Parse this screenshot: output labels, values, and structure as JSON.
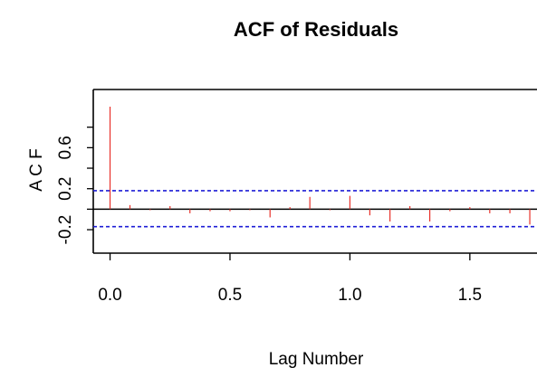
{
  "chart_data": {
    "type": "bar",
    "title": "ACF of Residuals",
    "xlabel": "Lag Number",
    "ylabel": "A C F",
    "x_ticks": [
      "0.0",
      "0.5",
      "1.0",
      "1.5"
    ],
    "x_tick_values": [
      0.0,
      0.5,
      1.0,
      1.5
    ],
    "y_ticks": [
      "-0.2",
      "0.2",
      "0.6"
    ],
    "y_tick_values": [
      -0.2,
      0.2,
      0.6
    ],
    "y_minor_tick_values": [
      -0.2,
      0.0,
      0.2,
      0.4,
      0.6,
      0.8
    ],
    "xlim": [
      -0.07,
      1.78
    ],
    "ylim": [
      -0.27,
      1.0
    ],
    "confidence_limits": [
      0.18,
      -0.17
    ],
    "zero_line": 0,
    "lags": [
      0.0,
      0.083,
      0.167,
      0.25,
      0.333,
      0.417,
      0.5,
      0.583,
      0.667,
      0.75,
      0.833,
      0.917,
      1.0,
      1.083,
      1.167,
      1.25,
      1.333,
      1.417,
      1.5,
      1.583,
      1.667,
      1.75
    ],
    "acf": [
      1.0,
      0.04,
      -0.01,
      0.03,
      -0.04,
      -0.02,
      -0.02,
      -0.01,
      -0.08,
      0.02,
      0.12,
      -0.01,
      0.13,
      -0.06,
      -0.12,
      0.03,
      -0.12,
      -0.02,
      0.02,
      -0.04,
      -0.04,
      -0.15
    ],
    "spike_color": "#e8312a",
    "limit_color": "#1d1dd6",
    "axis_color": "#000000",
    "grid": false
  }
}
